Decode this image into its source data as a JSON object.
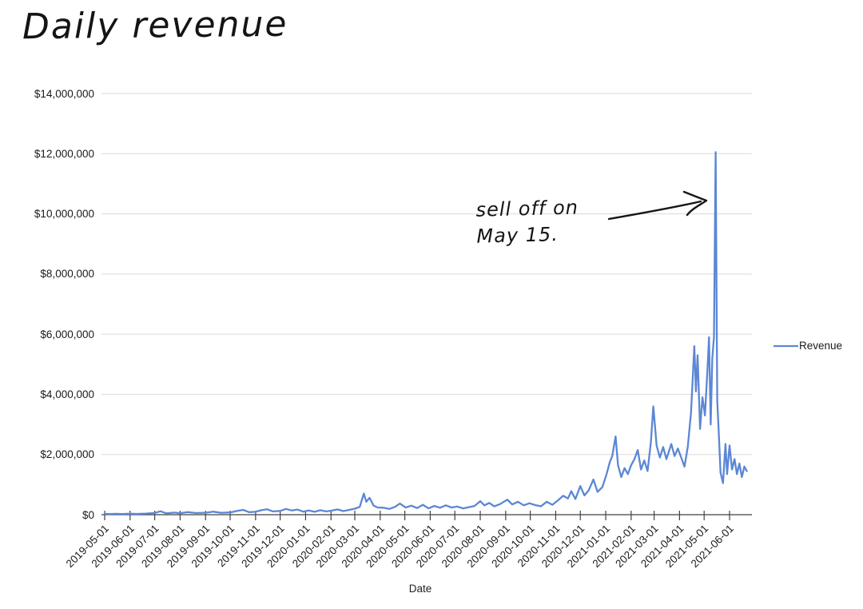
{
  "title": "Daily revenue",
  "annotation": {
    "line1": "sell off on",
    "line2": "May 15.",
    "target": "revenue spike at 2021-05-15"
  },
  "legend": {
    "label": "Revenue"
  },
  "x_axis": {
    "title": "Date",
    "tick_labels": [
      "2019-05-01",
      "2019-06-01",
      "2019-07-01",
      "2019-08-01",
      "2019-09-01",
      "2019-10-01",
      "2019-11-01",
      "2019-12-01",
      "2020-01-01",
      "2020-02-01",
      "2020-03-01",
      "2020-04-01",
      "2020-05-01",
      "2020-06-01",
      "2020-07-01",
      "2020-08-01",
      "2020-09-01",
      "2020-10-01",
      "2020-11-01",
      "2020-12-01",
      "2021-01-01",
      "2021-02-01",
      "2021-03-01",
      "2021-04-01",
      "2021-05-01",
      "2021-06-01"
    ]
  },
  "y_axis": {
    "tick_labels": [
      "$0",
      "$2,000,000",
      "$4,000,000",
      "$6,000,000",
      "$8,000,000",
      "$10,000,000",
      "$12,000,000",
      "$14,000,000"
    ],
    "tick_values": [
      0,
      2000000,
      4000000,
      6000000,
      8000000,
      10000000,
      12000000,
      14000000
    ]
  },
  "colors": {
    "line": "#5b87d5",
    "grid": "#dadada",
    "axis": "#424242",
    "text": "#1a1a1a",
    "ink": "#161616"
  },
  "chart_data": {
    "type": "line",
    "title": "Daily revenue",
    "xlabel": "Date",
    "ylabel": "",
    "ylim": [
      0,
      14000000
    ],
    "x_range": [
      "2019-05-01",
      "2021-06-22"
    ],
    "grid": true,
    "legend_position": "right",
    "annotations": [
      {
        "text": "sell off on May 15.",
        "points_to_date": "2021-05-15",
        "points_to_value": 12050000
      }
    ],
    "series": [
      {
        "name": "Revenue",
        "color": "#5b87d5",
        "points": [
          [
            "2019-05-01",
            28000
          ],
          [
            "2019-05-08",
            22000
          ],
          [
            "2019-05-15",
            30000
          ],
          [
            "2019-05-22",
            24000
          ],
          [
            "2019-06-01",
            32000
          ],
          [
            "2019-06-10",
            26000
          ],
          [
            "2019-06-20",
            38000
          ],
          [
            "2019-07-01",
            55000
          ],
          [
            "2019-07-08",
            115000
          ],
          [
            "2019-07-15",
            45000
          ],
          [
            "2019-07-25",
            70000
          ],
          [
            "2019-08-01",
            50000
          ],
          [
            "2019-08-10",
            85000
          ],
          [
            "2019-08-20",
            55000
          ],
          [
            "2019-09-01",
            65000
          ],
          [
            "2019-09-10",
            100000
          ],
          [
            "2019-09-20",
            60000
          ],
          [
            "2019-10-01",
            75000
          ],
          [
            "2019-10-10",
            130000
          ],
          [
            "2019-10-17",
            160000
          ],
          [
            "2019-10-24",
            85000
          ],
          [
            "2019-11-01",
            95000
          ],
          [
            "2019-11-08",
            150000
          ],
          [
            "2019-11-15",
            180000
          ],
          [
            "2019-11-22",
            110000
          ],
          [
            "2019-12-01",
            125000
          ],
          [
            "2019-12-08",
            190000
          ],
          [
            "2019-12-15",
            140000
          ],
          [
            "2019-12-22",
            170000
          ],
          [
            "2019-12-29",
            100000
          ],
          [
            "2020-01-05",
            140000
          ],
          [
            "2020-01-12",
            95000
          ],
          [
            "2020-01-19",
            150000
          ],
          [
            "2020-01-26",
            110000
          ],
          [
            "2020-02-02",
            135000
          ],
          [
            "2020-02-09",
            175000
          ],
          [
            "2020-02-16",
            120000
          ],
          [
            "2020-02-23",
            160000
          ],
          [
            "2020-03-01",
            200000
          ],
          [
            "2020-03-07",
            260000
          ],
          [
            "2020-03-12",
            700000
          ],
          [
            "2020-03-15",
            430000
          ],
          [
            "2020-03-19",
            560000
          ],
          [
            "2020-03-24",
            300000
          ],
          [
            "2020-03-29",
            240000
          ],
          [
            "2020-04-05",
            230000
          ],
          [
            "2020-04-12",
            190000
          ],
          [
            "2020-04-19",
            260000
          ],
          [
            "2020-04-25",
            370000
          ],
          [
            "2020-05-02",
            240000
          ],
          [
            "2020-05-09",
            300000
          ],
          [
            "2020-05-16",
            220000
          ],
          [
            "2020-05-23",
            330000
          ],
          [
            "2020-05-30",
            210000
          ],
          [
            "2020-06-06",
            290000
          ],
          [
            "2020-06-13",
            230000
          ],
          [
            "2020-06-20",
            310000
          ],
          [
            "2020-06-27",
            240000
          ],
          [
            "2020-07-04",
            270000
          ],
          [
            "2020-07-11",
            210000
          ],
          [
            "2020-07-18",
            250000
          ],
          [
            "2020-07-25",
            290000
          ],
          [
            "2020-08-01",
            450000
          ],
          [
            "2020-08-06",
            310000
          ],
          [
            "2020-08-12",
            390000
          ],
          [
            "2020-08-18",
            280000
          ],
          [
            "2020-08-25",
            350000
          ],
          [
            "2020-09-03",
            500000
          ],
          [
            "2020-09-09",
            340000
          ],
          [
            "2020-09-16",
            430000
          ],
          [
            "2020-09-23",
            310000
          ],
          [
            "2020-09-30",
            380000
          ],
          [
            "2020-10-07",
            320000
          ],
          [
            "2020-10-14",
            280000
          ],
          [
            "2020-10-21",
            430000
          ],
          [
            "2020-10-28",
            330000
          ],
          [
            "2020-11-04",
            480000
          ],
          [
            "2020-11-10",
            630000
          ],
          [
            "2020-11-16",
            540000
          ],
          [
            "2020-11-20",
            780000
          ],
          [
            "2020-11-25",
            520000
          ],
          [
            "2020-12-01",
            950000
          ],
          [
            "2020-12-06",
            640000
          ],
          [
            "2020-12-11",
            800000
          ],
          [
            "2020-12-17",
            1170000
          ],
          [
            "2020-12-22",
            760000
          ],
          [
            "2020-12-28",
            920000
          ],
          [
            "2021-01-02",
            1350000
          ],
          [
            "2021-01-06",
            1750000
          ],
          [
            "2021-01-09",
            1950000
          ],
          [
            "2021-01-13",
            2600000
          ],
          [
            "2021-01-16",
            1650000
          ],
          [
            "2021-01-20",
            1250000
          ],
          [
            "2021-01-24",
            1550000
          ],
          [
            "2021-01-28",
            1350000
          ],
          [
            "2021-02-01",
            1650000
          ],
          [
            "2021-02-05",
            1850000
          ],
          [
            "2021-02-09",
            2150000
          ],
          [
            "2021-02-13",
            1500000
          ],
          [
            "2021-02-17",
            1800000
          ],
          [
            "2021-02-21",
            1450000
          ],
          [
            "2021-02-25",
            2400000
          ],
          [
            "2021-02-28",
            3600000
          ],
          [
            "2021-03-04",
            2300000
          ],
          [
            "2021-03-08",
            1900000
          ],
          [
            "2021-03-12",
            2250000
          ],
          [
            "2021-03-16",
            1850000
          ],
          [
            "2021-03-22",
            2350000
          ],
          [
            "2021-03-26",
            1950000
          ],
          [
            "2021-03-30",
            2200000
          ],
          [
            "2021-04-03",
            1900000
          ],
          [
            "2021-04-07",
            1600000
          ],
          [
            "2021-04-11",
            2250000
          ],
          [
            "2021-04-15",
            3400000
          ],
          [
            "2021-04-19",
            5600000
          ],
          [
            "2021-04-21",
            4100000
          ],
          [
            "2021-04-23",
            5300000
          ],
          [
            "2021-04-26",
            2850000
          ],
          [
            "2021-04-29",
            3900000
          ],
          [
            "2021-05-02",
            3300000
          ],
          [
            "2021-05-05",
            4800000
          ],
          [
            "2021-05-07",
            5900000
          ],
          [
            "2021-05-09",
            3000000
          ],
          [
            "2021-05-11",
            5200000
          ],
          [
            "2021-05-13",
            5900000
          ],
          [
            "2021-05-15",
            12050000
          ],
          [
            "2021-05-17",
            3800000
          ],
          [
            "2021-05-19",
            2600000
          ],
          [
            "2021-05-21",
            1400000
          ],
          [
            "2021-05-24",
            1050000
          ],
          [
            "2021-05-27",
            2350000
          ],
          [
            "2021-05-29",
            1350000
          ],
          [
            "2021-06-01",
            2300000
          ],
          [
            "2021-06-04",
            1500000
          ],
          [
            "2021-06-07",
            1850000
          ],
          [
            "2021-06-10",
            1350000
          ],
          [
            "2021-06-13",
            1700000
          ],
          [
            "2021-06-16",
            1250000
          ],
          [
            "2021-06-19",
            1600000
          ],
          [
            "2021-06-22",
            1450000
          ]
        ]
      }
    ]
  }
}
